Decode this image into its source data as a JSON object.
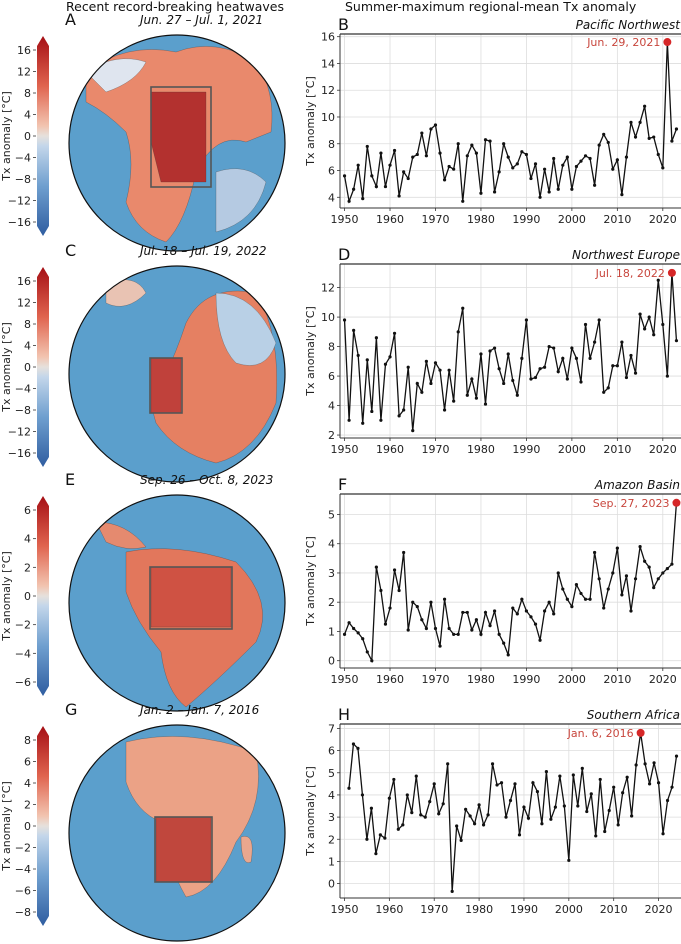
{
  "left_title": "Recent record-breaking heatwaves",
  "right_title": "Summer-maximum regional-mean Tx anomaly",
  "colors": {
    "line": "#111111",
    "peak": "#d62728",
    "peak_label": "#c8463d",
    "grid": "#dddddd",
    "ocean": "#5b9fcc",
    "hot": "#b2182b",
    "cold": "#2166ac",
    "neutral": "#f0d8cc"
  },
  "maps": [
    {
      "letter": "A",
      "dates": "Jun. 27 – Jul. 1, 2021",
      "cbar_label": "Tx anomaly [°C]",
      "cbar_ticks": [
        "16",
        "12",
        "8",
        "4",
        "0",
        "−4",
        "−8",
        "−12",
        "−16"
      ],
      "region": "Pacific Northwest"
    },
    {
      "letter": "C",
      "dates": "Jul. 18 – Jul. 19, 2022",
      "cbar_label": "Tx anomaly [°C]",
      "cbar_ticks": [
        "16",
        "12",
        "8",
        "4",
        "0",
        "−4",
        "−8",
        "−12",
        "−16"
      ],
      "region": "Northwest Europe"
    },
    {
      "letter": "E",
      "dates": "Sep. 26 – Oct. 8, 2023",
      "cbar_label": "Tx anomaly [°C]",
      "cbar_ticks": [
        "6",
        "4",
        "2",
        "0",
        "−2",
        "−4",
        "−6"
      ],
      "region": "Amazon Basin"
    },
    {
      "letter": "G",
      "dates": "Jan. 2 – Jan. 7, 2016",
      "cbar_label": "Tx anomaly [°C]",
      "cbar_ticks": [
        "8",
        "6",
        "4",
        "2",
        "0",
        "−2",
        "−4",
        "−6",
        "−8"
      ],
      "region": "Southern Africa"
    }
  ],
  "chart_data": [
    {
      "type": "line",
      "letter": "B",
      "title": "Pacific Northwest",
      "xlabel": "",
      "ylabel": "Tx anomaly [°C]",
      "xlim": [
        1949,
        2024
      ],
      "ylim": [
        3.2,
        16.2
      ],
      "yticks": [
        4,
        6,
        8,
        10,
        12,
        14,
        16
      ],
      "xticks": [
        1950,
        1960,
        1970,
        1980,
        1990,
        2000,
        2010,
        2020
      ],
      "grid": true,
      "x_start": 1950,
      "values": [
        5.6,
        3.7,
        4.6,
        6.4,
        3.9,
        7.8,
        5.6,
        4.8,
        7.3,
        4.8,
        6.4,
        7.5,
        4.1,
        5.9,
        5.4,
        7.0,
        7.2,
        8.8,
        7.1,
        9.1,
        9.4,
        7.3,
        5.3,
        6.3,
        6.1,
        8.0,
        3.7,
        7.1,
        7.9,
        7.3,
        4.3,
        8.3,
        8.2,
        4.4,
        5.9,
        8.0,
        7.0,
        6.2,
        6.5,
        7.4,
        7.2,
        5.4,
        6.5,
        4.0,
        6.1,
        4.4,
        6.9,
        4.6,
        6.4,
        7.0,
        4.6,
        6.3,
        6.7,
        7.1,
        6.9,
        4.9,
        7.9,
        8.7,
        8.1,
        6.1,
        6.8,
        4.2,
        7.0,
        9.6,
        8.5,
        9.6,
        10.8,
        8.4,
        8.5,
        7.2,
        6.2,
        15.6,
        8.2,
        9.1
      ],
      "peak": {
        "year": 2021,
        "value": 15.6,
        "label": "Jun. 29, 2021"
      }
    },
    {
      "type": "line",
      "letter": "D",
      "title": "Northwest Europe",
      "xlabel": "",
      "ylabel": "Tx anomaly [°C]",
      "xlim": [
        1949,
        2024
      ],
      "ylim": [
        1.8,
        13.6
      ],
      "yticks": [
        2,
        4,
        6,
        8,
        10,
        12
      ],
      "xticks": [
        1950,
        1960,
        1970,
        1980,
        1990,
        2000,
        2010,
        2020
      ],
      "grid": true,
      "x_start": 1950,
      "values": [
        9.8,
        3.0,
        9.1,
        7.4,
        2.8,
        7.1,
        3.6,
        8.6,
        3.0,
        6.8,
        7.3,
        8.9,
        3.3,
        3.7,
        6.6,
        2.3,
        5.5,
        4.9,
        7.0,
        5.5,
        6.9,
        6.4,
        3.7,
        6.4,
        4.3,
        9.0,
        10.6,
        4.7,
        5.8,
        4.5,
        7.5,
        4.1,
        7.7,
        7.9,
        6.5,
        5.5,
        7.5,
        5.7,
        4.7,
        7.2,
        9.8,
        5.8,
        5.9,
        6.5,
        6.6,
        8.0,
        7.9,
        6.3,
        7.2,
        5.8,
        7.9,
        7.2,
        5.6,
        9.5,
        7.2,
        8.3,
        9.8,
        4.9,
        5.2,
        6.7,
        6.7,
        8.3,
        5.9,
        7.4,
        6.2,
        10.2,
        9.2,
        10.0,
        8.8,
        12.5,
        9.5,
        6.0,
        13.0,
        8.4
      ],
      "peak": {
        "year": 2022,
        "value": 13.0,
        "label": "Jul. 18, 2022"
      }
    },
    {
      "type": "line",
      "letter": "F",
      "title": "Amazon Basin",
      "xlabel": "",
      "ylabel": "Tx anomaly [°C]",
      "xlim": [
        1949,
        2024
      ],
      "ylim": [
        -0.25,
        5.7
      ],
      "yticks": [
        0,
        1,
        2,
        3,
        4,
        5
      ],
      "xticks": [
        1950,
        1960,
        1970,
        1980,
        1990,
        2000,
        2010,
        2020
      ],
      "grid": true,
      "x_start": 1950,
      "values": [
        0.9,
        1.3,
        1.1,
        0.95,
        0.75,
        0.3,
        0.0,
        3.2,
        2.4,
        1.25,
        1.8,
        3.1,
        2.4,
        3.7,
        1.05,
        2.0,
        1.85,
        1.4,
        1.1,
        2.0,
        1.1,
        0.5,
        2.1,
        1.1,
        0.9,
        0.9,
        1.65,
        1.65,
        1.05,
        1.4,
        0.9,
        1.65,
        1.2,
        1.7,
        0.9,
        0.6,
        0.2,
        1.8,
        1.6,
        2.1,
        1.7,
        1.5,
        1.25,
        0.7,
        1.7,
        2.0,
        1.6,
        3.0,
        2.45,
        2.1,
        1.85,
        2.6,
        2.3,
        2.1,
        2.1,
        3.7,
        2.8,
        1.8,
        2.45,
        3.0,
        3.85,
        2.25,
        2.9,
        1.7,
        2.8,
        3.9,
        3.4,
        3.2,
        2.5,
        2.8,
        3.0,
        3.15,
        3.3,
        5.4
      ],
      "peak": {
        "year": 2023,
        "value": 5.4,
        "label": "Sep. 27, 2023"
      }
    },
    {
      "type": "line",
      "letter": "H",
      "title": "Southern Africa",
      "xlabel": "",
      "ylabel": "Tx anomaly [°C]",
      "xlim": [
        1949,
        2025
      ],
      "ylim": [
        -0.65,
        7.2
      ],
      "yticks": [
        0,
        1,
        2,
        3,
        4,
        5,
        6,
        7
      ],
      "xticks": [
        1950,
        1960,
        1970,
        1980,
        1990,
        2000,
        2010,
        2020
      ],
      "grid": true,
      "x_start": 1951,
      "values": [
        4.3,
        6.3,
        6.1,
        4.0,
        2.0,
        3.4,
        1.35,
        2.2,
        2.05,
        3.85,
        4.7,
        2.45,
        2.65,
        4.0,
        3.2,
        4.85,
        3.1,
        3.0,
        3.7,
        4.5,
        3.15,
        3.6,
        5.4,
        -0.35,
        2.6,
        1.95,
        3.35,
        3.05,
        2.7,
        3.55,
        2.65,
        3.1,
        5.4,
        4.45,
        4.55,
        3.0,
        3.75,
        4.5,
        2.2,
        3.45,
        2.95,
        4.55,
        4.15,
        2.7,
        5.05,
        2.9,
        3.45,
        4.85,
        3.5,
        1.05,
        4.9,
        3.5,
        5.2,
        3.25,
        4.05,
        2.15,
        4.7,
        2.35,
        3.3,
        4.35,
        2.65,
        4.1,
        4.8,
        3.05,
        5.35,
        6.8,
        5.4,
        4.5,
        5.45,
        4.55,
        2.25,
        3.75,
        4.35,
        5.75
      ],
      "peak": {
        "year": 2016,
        "value": 6.8,
        "label": "Jan. 6, 2016"
      }
    }
  ]
}
